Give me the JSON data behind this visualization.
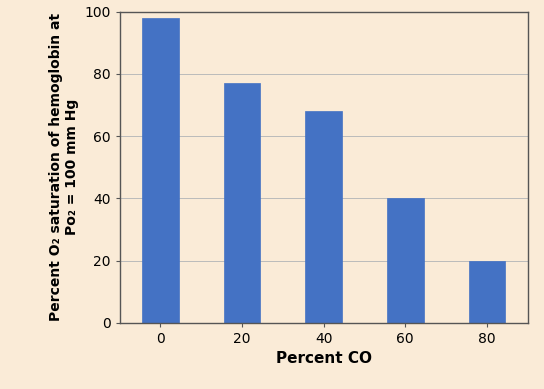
{
  "categories": [
    0,
    20,
    40,
    60,
    80
  ],
  "values": [
    98,
    77,
    68,
    40,
    20
  ],
  "bar_color": "#4472c4",
  "background_color": "#faebd7",
  "xlabel": "Percent CO",
  "ylabel": "Percent O₂ saturation of hemoglobin at\nPo₂ = 100 mm Hg",
  "ylim": [
    0,
    100
  ],
  "yticks": [
    0,
    20,
    40,
    60,
    80,
    100
  ],
  "xtick_labels": [
    "0",
    "20",
    "40",
    "60",
    "80"
  ],
  "xlabel_fontsize": 11,
  "ylabel_fontsize": 10,
  "tick_fontsize": 10,
  "bar_width": 0.45,
  "grid_color": "#bbbbbb"
}
